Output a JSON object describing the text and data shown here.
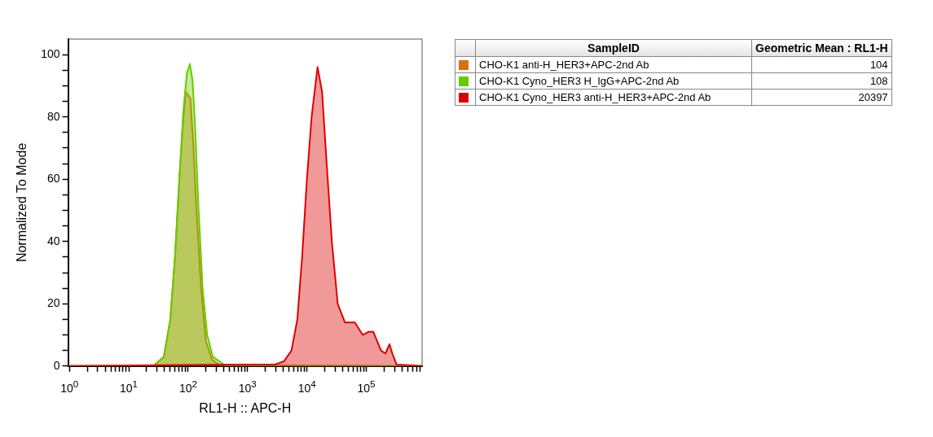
{
  "chart_data": {
    "type": "area",
    "xlabel": "RL1-H :: APC-H",
    "ylabel": "Normalized To Mode",
    "log": "x",
    "grid": false,
    "legend": "right",
    "legend_title": "SampleID",
    "annotations": [
      "Geometric Mean : RL1-H",
      "104",
      "108",
      "20397"
    ],
    "xlim": [
      0.95,
      870000
    ],
    "ylim": [
      0,
      105
    ],
    "xticks": [
      {
        "value": 1,
        "label": "10$^{0}$"
      },
      {
        "value": 2,
        "label": null
      },
      {
        "value": 3,
        "label": null
      },
      {
        "value": 4,
        "label": null
      },
      {
        "value": 5,
        "label": null
      },
      {
        "value": 6,
        "label": null
      },
      {
        "value": 7,
        "label": null
      },
      {
        "value": 8,
        "label": null
      },
      {
        "value": 9,
        "label": null
      },
      {
        "value": 10,
        "label": "10$^{1}$"
      },
      {
        "value": 20,
        "label": null
      },
      {
        "value": 30,
        "label": null
      },
      {
        "value": 40,
        "label": null
      },
      {
        "value": 50,
        "label": null
      },
      {
        "value": 60,
        "label": null
      },
      {
        "value": 70,
        "label": null
      },
      {
        "value": 80,
        "label": null
      },
      {
        "value": 90,
        "label": null
      },
      {
        "value": 100,
        "label": "10$^{2}$"
      },
      {
        "value": 200,
        "label": null
      },
      {
        "value": 300,
        "label": null
      },
      {
        "value": 400,
        "label": null
      },
      {
        "value": 500,
        "label": null
      },
      {
        "value": 600,
        "label": null
      },
      {
        "value": 700,
        "label": null
      },
      {
        "value": 800,
        "label": null
      },
      {
        "value": 900,
        "label": null
      },
      {
        "value": 1000,
        "label": "10$^{3}$"
      },
      {
        "value": 2000,
        "label": null
      },
      {
        "value": 3000,
        "label": null
      },
      {
        "value": 4000,
        "label": null
      },
      {
        "value": 5000,
        "label": null
      },
      {
        "value": 6000,
        "label": null
      },
      {
        "value": 7000,
        "label": null
      },
      {
        "value": 8000,
        "label": null
      },
      {
        "value": 9000,
        "label": null
      },
      {
        "value": 10000,
        "label": "10$^{4}$"
      },
      {
        "value": 20000,
        "label": null
      },
      {
        "value": 30000,
        "label": null
      },
      {
        "value": 40000,
        "label": null
      },
      {
        "value": 50000,
        "label": null
      },
      {
        "value": 60000,
        "label": null
      },
      {
        "value": 70000,
        "label": null
      },
      {
        "value": 80000,
        "label": null
      },
      {
        "value": 90000,
        "label": null
      },
      {
        "value": 100000,
        "label": "10$^{5}$"
      },
      {
        "value": 200000,
        "label": null
      },
      {
        "value": 300000,
        "label": null
      },
      {
        "value": 400000,
        "label": null
      },
      {
        "value": 500000,
        "label": null
      },
      {
        "value": 600000,
        "label": null
      },
      {
        "value": 700000,
        "label": null
      },
      {
        "value": 800000,
        "label": null
      }
    ],
    "yticks": [
      0,
      {
        "value": 5,
        "label": null
      },
      {
        "value": 10,
        "label": null
      },
      {
        "value": 15,
        "label": null
      },
      20,
      {
        "value": 25,
        "label": null
      },
      {
        "value": 30,
        "label": null
      },
      {
        "value": 35,
        "label": null
      },
      40,
      {
        "value": 45,
        "label": null
      },
      {
        "value": 50,
        "label": null
      },
      {
        "value": 55,
        "label": null
      },
      60,
      {
        "value": 65,
        "label": null
      },
      {
        "value": 70,
        "label": null
      },
      {
        "value": 75,
        "label": null
      },
      80,
      {
        "value": 85,
        "label": null
      },
      {
        "value": 90,
        "label": null
      },
      {
        "value": 95,
        "label": null
      },
      100
    ],
    "series": [
      {
        "name": "CHO-K1 anti-H_HER3+APC-2nd Ab",
        "color": "#d9700a",
        "x": [
          0.95,
          26,
          39,
          50,
          60,
          71,
          83,
          91,
          100,
          109,
          123,
          138,
          165,
          199,
          252,
          340,
          870000
        ],
        "values": [
          0,
          0,
          3,
          15,
          35,
          60,
          80,
          88,
          87,
          86,
          70,
          50,
          25,
          8,
          2,
          0.3,
          0
        ]
      },
      {
        "name": "CHO-K1 Cyno_HER3 H_IgG+APC-2nd Ab",
        "color": "#66cc00",
        "x": [
          0.95,
          26,
          39,
          50,
          60,
          71,
          83,
          95,
          107,
          118,
          130,
          150,
          175,
          209,
          260,
          435,
          870000
        ],
        "values": [
          0,
          0,
          3,
          15,
          35,
          60,
          82,
          94,
          97,
          92,
          78,
          50,
          25,
          10,
          3,
          0,
          0
        ]
      },
      {
        "name": "CHO-K1 Cyno_HER3 anti-H_HER3+APC-2nd Ab",
        "color": "#dd0000",
        "x": [
          0.95,
          1230,
          2900,
          4100,
          5500,
          6900,
          8300,
          10000,
          12000,
          15100,
          18000,
          21500,
          26300,
          33000,
          43600,
          64000,
          87000,
          110000,
          131000,
          177000,
          210000,
          246000,
          275000,
          323000,
          870000
        ],
        "values": [
          0,
          0.5,
          0.5,
          1.5,
          5,
          15,
          35,
          60,
          80,
          96,
          88,
          65,
          40,
          20,
          14,
          14,
          10,
          11,
          11,
          5,
          4,
          7,
          4,
          0.5,
          0
        ]
      }
    ]
  }
}
